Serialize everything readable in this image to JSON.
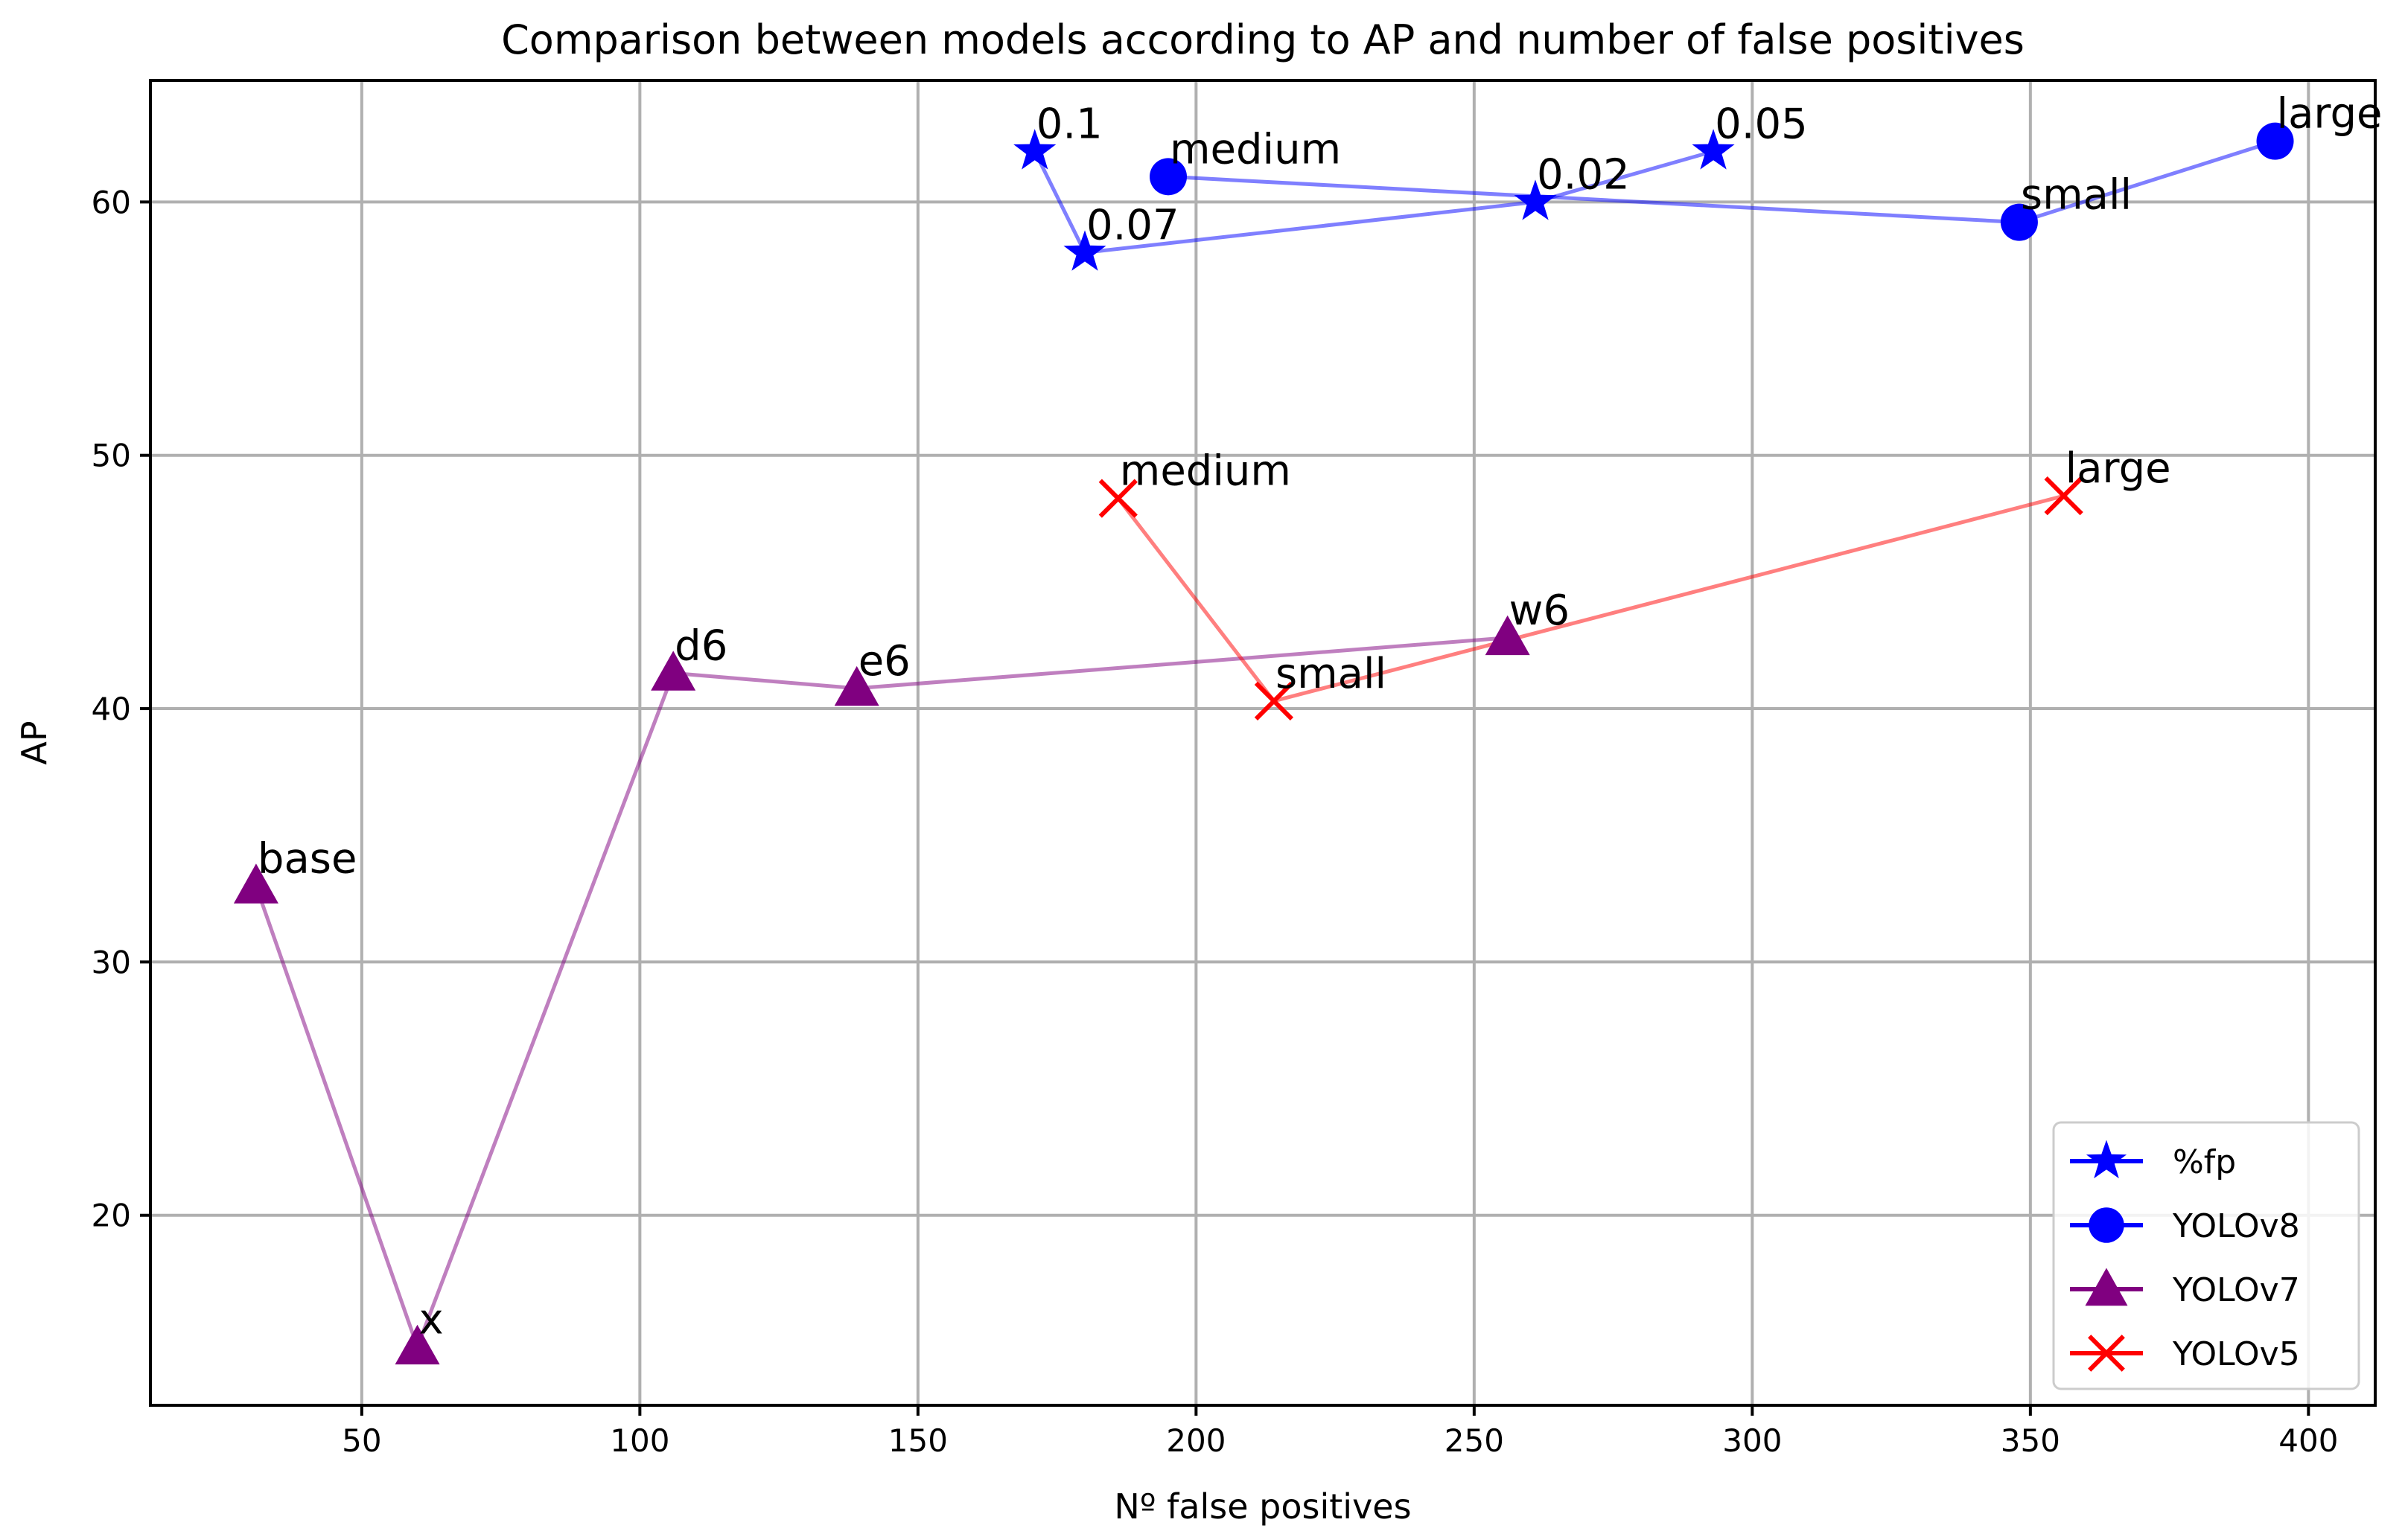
{
  "chart_data": {
    "type": "line",
    "title": "Comparison between models according to AP and number of false positives",
    "xlabel": "Nº false positives",
    "ylabel": "AP",
    "xlim": [
      12,
      412
    ],
    "ylim": [
      12.5,
      64.8
    ],
    "xticks": [
      50,
      100,
      150,
      200,
      250,
      300,
      350,
      400
    ],
    "yticks": [
      20,
      30,
      40,
      50,
      60
    ],
    "grid": true,
    "legend_position": "bottom-right",
    "series": [
      {
        "name": "%fp",
        "color": "#0000ff",
        "marker": "star",
        "points": [
          {
            "x": 171,
            "y": 62.0,
            "label": "0.1"
          },
          {
            "x": 180,
            "y": 58.0,
            "label": "0.07"
          },
          {
            "x": 261,
            "y": 60.0,
            "label": "0.02"
          },
          {
            "x": 293,
            "y": 62.0,
            "label": "0.05"
          }
        ]
      },
      {
        "name": "YOLOv8",
        "color": "#0000ff",
        "marker": "circle",
        "points": [
          {
            "x": 195,
            "y": 61.0,
            "label": "medium"
          },
          {
            "x": 348,
            "y": 59.2,
            "label": "small"
          },
          {
            "x": 394,
            "y": 62.4,
            "label": "large"
          }
        ]
      },
      {
        "name": "YOLOv7",
        "color": "#800080",
        "marker": "triangle",
        "points": [
          {
            "x": 31,
            "y": 33.0,
            "label": "base"
          },
          {
            "x": 60,
            "y": 14.8,
            "label": "x"
          },
          {
            "x": 106,
            "y": 41.4,
            "label": "d6"
          },
          {
            "x": 139,
            "y": 40.8,
            "label": "e6"
          },
          {
            "x": 256,
            "y": 42.8,
            "label": "w6"
          }
        ]
      },
      {
        "name": "YOLOv5",
        "color": "#ff0000",
        "marker": "x",
        "points": [
          {
            "x": 186,
            "y": 48.3,
            "label": "medium"
          },
          {
            "x": 214,
            "y": 40.3,
            "label": "small"
          },
          {
            "x": 356,
            "y": 48.4,
            "label": "large"
          }
        ]
      }
    ]
  }
}
